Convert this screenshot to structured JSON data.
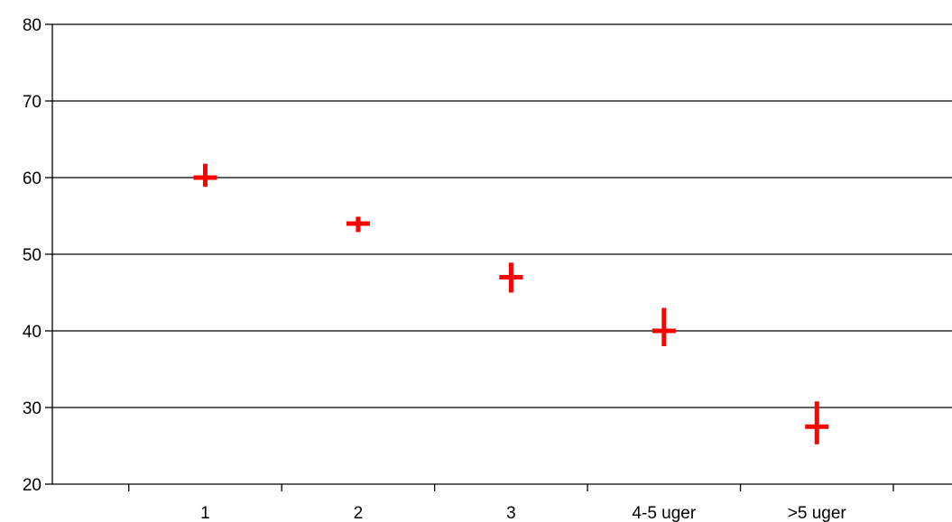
{
  "chart_data": {
    "type": "scatter",
    "title": "",
    "xlabel": "",
    "ylabel": "",
    "categories": [
      "1",
      "2",
      "3",
      "4-5 uger",
      ">5 uger"
    ],
    "series": [
      {
        "values": [
          60,
          54,
          47,
          40,
          27.5
        ],
        "high": [
          61.8,
          54.9,
          48.9,
          43,
          30.8
        ],
        "low": [
          58.8,
          52.9,
          45,
          38,
          25.2
        ]
      }
    ],
    "ylim": [
      20,
      80
    ],
    "yticks": [
      20,
      30,
      40,
      50,
      60,
      70,
      80
    ],
    "ytick_labels": [
      "20",
      "30",
      "40",
      "50",
      "60",
      "70",
      "80"
    ],
    "grid": true,
    "legend": "none",
    "marker_color": "#ff0000"
  }
}
